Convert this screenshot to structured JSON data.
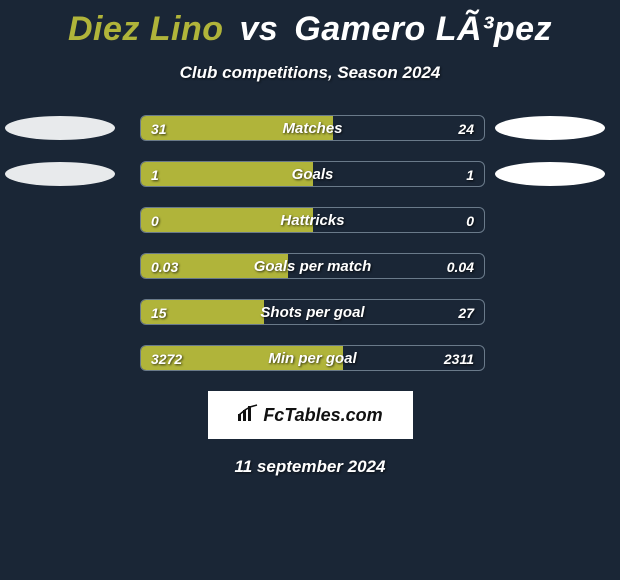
{
  "header": {
    "player1": "Diez Lino",
    "vs": "vs",
    "player2": "Gamero LÃ³pez",
    "subtitle": "Club competitions, Season 2024"
  },
  "colors": {
    "player1": "#b0b43a",
    "player2": "#ffffff",
    "background": "#1a2636",
    "bar_border": "#6a7a8a",
    "ellipse_left": "#e8eaec",
    "ellipse_right": "#ffffff"
  },
  "stats": [
    {
      "label": "Matches",
      "left_val": "31",
      "right_val": "24",
      "left_pct": 56,
      "show_left_ellipse": true,
      "show_right_ellipse": true
    },
    {
      "label": "Goals",
      "left_val": "1",
      "right_val": "1",
      "left_pct": 50,
      "show_left_ellipse": true,
      "show_right_ellipse": true
    },
    {
      "label": "Hattricks",
      "left_val": "0",
      "right_val": "0",
      "left_pct": 50,
      "show_left_ellipse": false,
      "show_right_ellipse": false
    },
    {
      "label": "Goals per match",
      "left_val": "0.03",
      "right_val": "0.04",
      "left_pct": 43,
      "show_left_ellipse": false,
      "show_right_ellipse": false
    },
    {
      "label": "Shots per goal",
      "left_val": "15",
      "right_val": "27",
      "left_pct": 36,
      "show_left_ellipse": false,
      "show_right_ellipse": false
    },
    {
      "label": "Min per goal",
      "left_val": "3272",
      "right_val": "2311",
      "left_pct": 59,
      "show_left_ellipse": false,
      "show_right_ellipse": false
    }
  ],
  "footer": {
    "logo_text": "FcTables.com",
    "date": "11 september 2024"
  }
}
